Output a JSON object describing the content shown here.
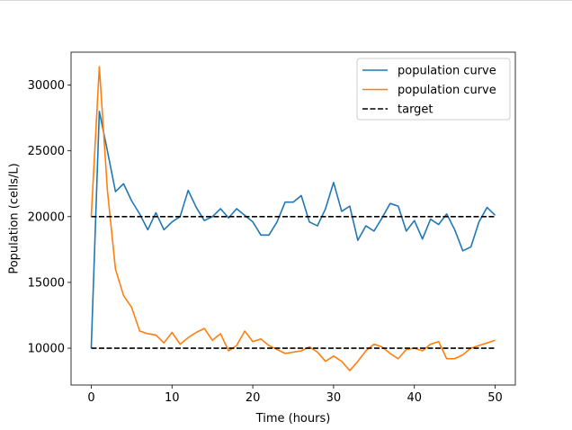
{
  "chart_data": {
    "type": "line",
    "title": "",
    "xlabel": "Time (hours)",
    "ylabel": "Population (cells/L)",
    "xlim": [
      -2.5,
      52.5
    ],
    "ylim": [
      7200,
      32500
    ],
    "xticks": [
      0,
      10,
      20,
      30,
      40,
      50
    ],
    "yticks": [
      10000,
      15000,
      20000,
      25000,
      30000
    ],
    "x": [
      0,
      1,
      2,
      3,
      4,
      5,
      6,
      7,
      8,
      9,
      10,
      11,
      12,
      13,
      14,
      15,
      16,
      17,
      18,
      19,
      20,
      21,
      22,
      23,
      24,
      25,
      26,
      27,
      28,
      29,
      30,
      31,
      32,
      33,
      34,
      35,
      36,
      37,
      38,
      39,
      40,
      41,
      42,
      43,
      44,
      45,
      46,
      47,
      48,
      49,
      50
    ],
    "legend_position": "top-right",
    "series": [
      {
        "name": "population curve",
        "color": "#1f77b4",
        "style": "solid",
        "values": [
          10000,
          28000,
          25000,
          21900,
          22500,
          21200,
          20200,
          19000,
          20300,
          19000,
          19600,
          20000,
          22000,
          20700,
          19700,
          20000,
          20600,
          19900,
          20600,
          20100,
          19600,
          18600,
          18600,
          19600,
          21100,
          21100,
          21600,
          19600,
          19300,
          20600,
          22600,
          20400,
          20800,
          18200,
          19300,
          18900,
          19900,
          21000,
          20800,
          18900,
          19700,
          18300,
          19800,
          19400,
          20200,
          19000,
          17400,
          17700,
          19600,
          20700,
          20100
        ]
      },
      {
        "name": "population curve",
        "color": "#ff7f0e",
        "style": "solid",
        "values": [
          20000,
          31400,
          22000,
          16000,
          14000,
          13100,
          11300,
          11100,
          11000,
          10400,
          11200,
          10300,
          10800,
          11200,
          11500,
          10600,
          11100,
          9800,
          10200,
          11300,
          10500,
          10700,
          10200,
          9900,
          9600,
          9700,
          9800,
          10100,
          9700,
          9000,
          9400,
          9000,
          8300,
          9000,
          9800,
          10300,
          10100,
          9600,
          9200,
          9900,
          10000,
          9800,
          10300,
          10500,
          9200,
          9200,
          9500,
          10000,
          10200,
          10400,
          10600
        ]
      },
      {
        "name": "target",
        "color": "#000000",
        "style": "dashed",
        "values": [
          20000,
          20000
        ],
        "x": [
          0,
          50
        ]
      },
      {
        "name": "target",
        "color": "#000000",
        "style": "dashed",
        "values": [
          10000,
          10000
        ],
        "x": [
          0,
          50
        ],
        "legend": false
      }
    ],
    "legend": [
      {
        "label": "population curve",
        "color": "#1f77b4",
        "style": "solid"
      },
      {
        "label": "population curve",
        "color": "#ff7f0e",
        "style": "solid"
      },
      {
        "label": "target",
        "color": "#000000",
        "style": "dashed"
      }
    ]
  }
}
